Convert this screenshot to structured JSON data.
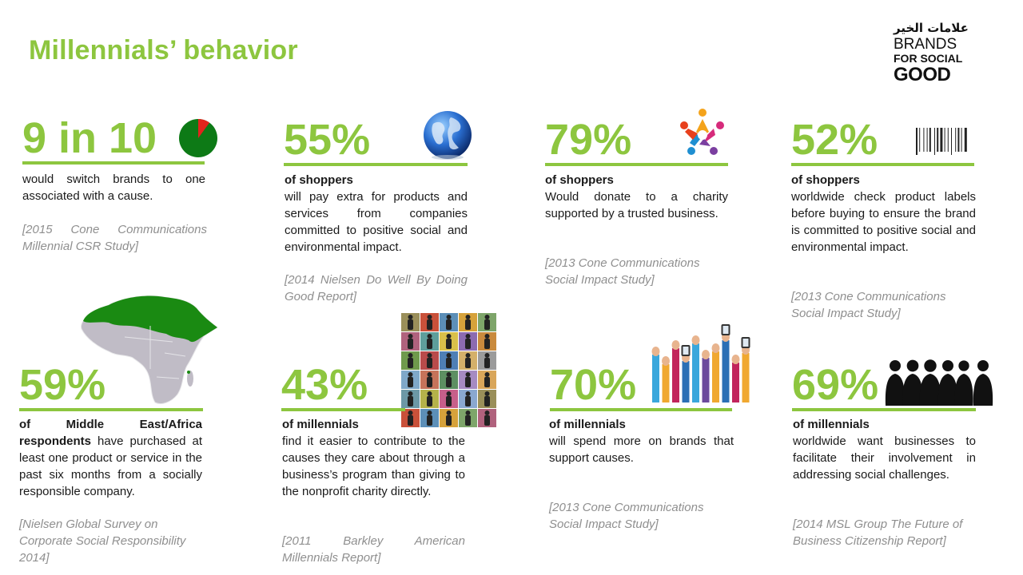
{
  "title": "Millennials’ behavior",
  "logo": {
    "arabic": "علامات الخير",
    "line1": "BRANDS",
    "line2": "FOR SOCIAL",
    "line3": "GOOD"
  },
  "accent_color": "#8dc63f",
  "cards": [
    {
      "stat": "9 in 10",
      "lead": "",
      "text": "would switch brands to one associated with a cause.",
      "source": "[2015 Cone Communications Millennial CSR Study]",
      "icon": "pie-chart-icon",
      "pie_fraction": 0.9
    },
    {
      "stat": "55%",
      "lead": "of shoppers",
      "text": "will pay extra for products and services from companies committed to positive social and environmental impact.",
      "source": "[2014 Nielsen Do Well By Doing Good Report]",
      "icon": "globe-icon"
    },
    {
      "stat": "79%",
      "lead": "of shoppers",
      "text": "Would donate to a charity supported by a trusted business.",
      "source": "[2013 Cone Communications Social Impact Study]",
      "icon": "community-icon"
    },
    {
      "stat": "52%",
      "lead": "of shoppers",
      "text": "worldwide check product labels before buying to ensure the brand is committed to positive social and environmental impact.",
      "source": "[2013 Cone Communications Social Impact Study]",
      "icon": "barcode-icon"
    },
    {
      "stat": "59%",
      "lead": "of Middle East/Africa respondents",
      "text": "have purchased at least one product or service in the past six months from a socially responsible company.",
      "source": "[Nielsen Global Survey on Corporate Social Responsibility 2014]",
      "icon": "africa-map-icon"
    },
    {
      "stat": "43%",
      "lead": "of millennials",
      "text": "find it easier to contribute to the causes they care about through a business’s program than giving to the nonprofit charity directly.",
      "source": "[2011 Barkley American Millennials Report]",
      "icon": "people-grid-icon"
    },
    {
      "stat": "70%",
      "lead": "of millennials",
      "text": "will spend more on brands that support causes.",
      "source": "[2013 Cone Communications Social Impact Study]",
      "icon": "raised-hands-icon"
    },
    {
      "stat": "69%",
      "lead": "of millennials",
      "text": "worldwide want businesses to facilitate their involvement in addressing social challenges.",
      "source": "[2014 MSL Group The Future of Business Citizenship Report]",
      "icon": "people-silhouettes-icon"
    }
  ]
}
